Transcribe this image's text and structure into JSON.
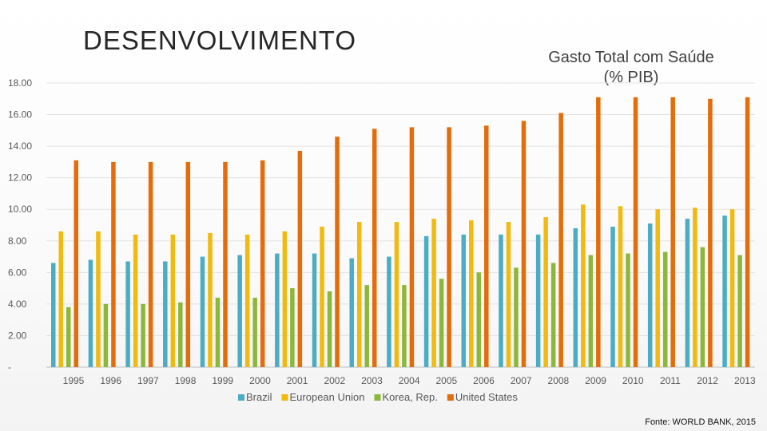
{
  "slide": {
    "title": "DESENVOLVIMENTO",
    "source": "Fonte: WORLD BANK, 2015"
  },
  "chart_data": {
    "type": "bar",
    "title_lines": [
      "Gasto Total com Saúde",
      "(% PIB)"
    ],
    "xlabel": "",
    "ylabel": "",
    "categories": [
      "1995",
      "1996",
      "1997",
      "1998",
      "1999",
      "2000",
      "2001",
      "2002",
      "2003",
      "2004",
      "2005",
      "2006",
      "2007",
      "2008",
      "2009",
      "2010",
      "2011",
      "2012",
      "2013"
    ],
    "y_ticks": [
      "-",
      "2.00",
      "4.00",
      "6.00",
      "8.00",
      "10.00",
      "12.00",
      "14.00",
      "16.00",
      "18.00"
    ],
    "ylim": [
      0,
      18
    ],
    "grid": true,
    "legend_position": "bottom",
    "series": [
      {
        "name": "Brazil",
        "color": "#4bacc6",
        "values": [
          6.6,
          6.8,
          6.7,
          6.7,
          7.0,
          7.1,
          7.2,
          7.2,
          6.9,
          7.0,
          8.3,
          8.4,
          8.4,
          8.4,
          8.8,
          8.9,
          9.1,
          9.4,
          9.6
        ]
      },
      {
        "name": "European Union",
        "color": "#f2b90f",
        "values": [
          8.6,
          8.6,
          8.4,
          8.4,
          8.5,
          8.4,
          8.6,
          8.9,
          9.2,
          9.2,
          9.4,
          9.3,
          9.2,
          9.5,
          10.3,
          10.2,
          10.0,
          10.1,
          10.0
        ]
      },
      {
        "name": "Korea, Rep.",
        "color": "#8cb83a",
        "values": [
          3.8,
          4.0,
          4.0,
          4.1,
          4.4,
          4.4,
          5.0,
          4.8,
          5.2,
          5.2,
          5.6,
          6.0,
          6.3,
          6.6,
          7.1,
          7.2,
          7.3,
          7.6,
          7.1
        ]
      },
      {
        "name": "United States",
        "color": "#e46c0a",
        "values": [
          13.1,
          13.0,
          13.0,
          13.0,
          13.0,
          13.1,
          13.7,
          14.6,
          15.1,
          15.2,
          15.2,
          15.3,
          15.6,
          16.1,
          17.1,
          17.1,
          17.1,
          17.0,
          17.1
        ]
      }
    ]
  }
}
